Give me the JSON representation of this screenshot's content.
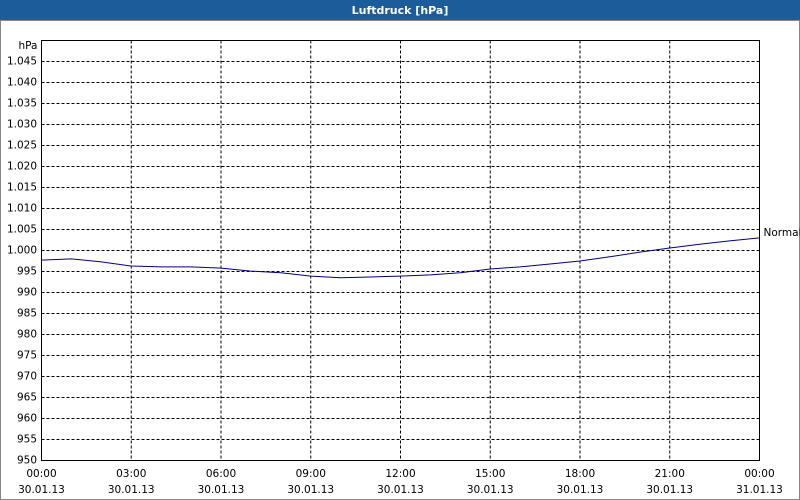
{
  "chart_data": {
    "type": "line",
    "title": "Luftdruck [hPa]",
    "ylabel": "hPa",
    "x": [
      0,
      1,
      2,
      3,
      4,
      5,
      6,
      7,
      8,
      9,
      10,
      11,
      12,
      13,
      14,
      15,
      16,
      17,
      18,
      19,
      20,
      21,
      22,
      23,
      24
    ],
    "series": [
      {
        "name": "Normal",
        "color": "#000080",
        "values": [
          997.7,
          998.0,
          997.3,
          996.3,
          996.1,
          996.1,
          995.8,
          995.1,
          994.7,
          993.9,
          993.5,
          993.7,
          993.9,
          994.2,
          994.7,
          995.6,
          996.1,
          996.8,
          997.5,
          998.5,
          999.6,
          1000.6,
          1001.5,
          1002.3,
          1003.0
        ]
      }
    ],
    "xlim": [
      0,
      24
    ],
    "xticks": [
      {
        "value": 0,
        "label": "00:00",
        "sublabel": "30.01.13"
      },
      {
        "value": 3,
        "label": "03:00",
        "sublabel": "30.01.13"
      },
      {
        "value": 6,
        "label": "06:00",
        "sublabel": "30.01.13"
      },
      {
        "value": 9,
        "label": "09:00",
        "sublabel": "30.01.13"
      },
      {
        "value": 12,
        "label": "12:00",
        "sublabel": "30.01.13"
      },
      {
        "value": 15,
        "label": "15:00",
        "sublabel": "30.01.13"
      },
      {
        "value": 18,
        "label": "18:00",
        "sublabel": "30.01.13"
      },
      {
        "value": 21,
        "label": "21:00",
        "sublabel": "30.01.13"
      },
      {
        "value": 24,
        "label": "00:00",
        "sublabel": "31.01.13"
      }
    ],
    "ylim": [
      950,
      1050
    ],
    "yticks": [
      950,
      955,
      960,
      965,
      970,
      975,
      980,
      985,
      990,
      995,
      {
        "value": 1000,
        "label": "1.000"
      },
      {
        "value": 1005,
        "label": "1.005"
      },
      {
        "value": 1010,
        "label": "1.010"
      },
      {
        "value": 1015,
        "label": "1.015"
      },
      {
        "value": 1020,
        "label": "1.020"
      },
      {
        "value": 1025,
        "label": "1.025"
      },
      {
        "value": 1030,
        "label": "1.030"
      },
      {
        "value": 1035,
        "label": "1.035"
      },
      {
        "value": 1040,
        "label": "1.040"
      },
      {
        "value": 1045,
        "label": "1.045"
      }
    ],
    "grid": true
  }
}
